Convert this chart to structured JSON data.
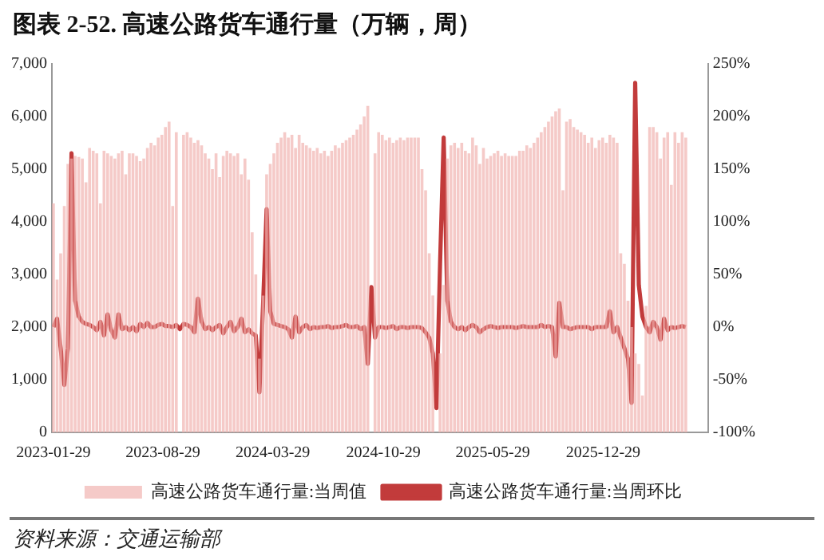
{
  "chart_data": {
    "type": "bar",
    "title": "图表 2-52. 高速公路货车通行量（万辆，周）",
    "annotations": [
      "资料来源：交通运输部"
    ],
    "legend": "bottom",
    "xlim": [
      "2023-01-26",
      "2026-07-20"
    ],
    "xticks": [
      "2023-01-29",
      "2023-08-29",
      "2024-03-29",
      "2024-10-29",
      "2025-05-29",
      "2025-12-29"
    ],
    "ylim": [
      0,
      7000
    ],
    "yticks": [
      {
        "value": 0,
        "label": "0"
      },
      {
        "value": 1000,
        "label": "1,000"
      },
      {
        "value": 2000,
        "label": "2,000"
      },
      {
        "value": 3000,
        "label": "3,000"
      },
      {
        "value": 4000,
        "label": "4,000"
      },
      {
        "value": 5000,
        "label": "5,000"
      },
      {
        "value": 6000,
        "label": "6,000"
      },
      {
        "value": 7000,
        "label": "7,000"
      }
    ],
    "y2lim": [
      -100,
      250
    ],
    "y2ticks": [
      {
        "value": -100,
        "label": "-100%"
      },
      {
        "value": -50,
        "label": "-50%"
      },
      {
        "value": 0,
        "label": "0%"
      },
      {
        "value": 50,
        "label": "50%"
      },
      {
        "value": 100,
        "label": "100%"
      },
      {
        "value": 150,
        "label": "150%"
      },
      {
        "value": 200,
        "label": "200%"
      },
      {
        "value": 250,
        "label": "250%"
      }
    ],
    "x": [
      "2023-01-29",
      "2023-02-05",
      "2023-02-12",
      "2023-02-19",
      "2023-02-26",
      "2023-03-05",
      "2023-03-12",
      "2023-03-19",
      "2023-03-26",
      "2023-04-02",
      "2023-04-09",
      "2023-04-16",
      "2023-04-23",
      "2023-04-30",
      "2023-05-07",
      "2023-05-14",
      "2023-05-21",
      "2023-05-28",
      "2023-06-04",
      "2023-06-11",
      "2023-06-18",
      "2023-06-25",
      "2023-07-02",
      "2023-07-09",
      "2023-07-16",
      "2023-07-23",
      "2023-07-30",
      "2023-08-06",
      "2023-08-13",
      "2023-08-20",
      "2023-08-27",
      "2023-09-03",
      "2023-09-10",
      "2023-09-17",
      "2023-09-24",
      "2023-10-01",
      "2023-10-08",
      "2023-10-15",
      "2023-10-22",
      "2023-10-29",
      "2023-11-05",
      "2023-11-12",
      "2023-11-19",
      "2023-11-26",
      "2023-12-03",
      "2023-12-10",
      "2023-12-17",
      "2023-12-24",
      "2023-12-31",
      "2024-01-07",
      "2024-01-14",
      "2024-01-21",
      "2024-01-28",
      "2024-02-04",
      "2024-02-11",
      "2024-02-18",
      "2024-02-25",
      "2024-03-03",
      "2024-03-10",
      "2024-03-17",
      "2024-03-24",
      "2024-03-31",
      "2024-04-07",
      "2024-04-14",
      "2024-04-21",
      "2024-04-28",
      "2024-05-05",
      "2024-05-12",
      "2024-05-19",
      "2024-05-26",
      "2024-06-02",
      "2024-06-09",
      "2024-06-16",
      "2024-06-23",
      "2024-06-30",
      "2024-07-07",
      "2024-07-14",
      "2024-07-21",
      "2024-07-28",
      "2024-08-04",
      "2024-08-11",
      "2024-08-18",
      "2024-08-25",
      "2024-09-01",
      "2024-09-08",
      "2024-09-15",
      "2024-09-22",
      "2024-09-29",
      "2024-10-06",
      "2024-10-13",
      "2024-10-20",
      "2024-10-27",
      "2024-11-03",
      "2024-11-10",
      "2024-11-17",
      "2024-11-24",
      "2024-12-01",
      "2024-12-08",
      "2024-12-15",
      "2024-12-22",
      "2024-12-29",
      "2025-01-05",
      "2025-01-12",
      "2025-01-19",
      "2025-01-26",
      "2025-02-02",
      "2025-02-09",
      "2025-02-16",
      "2025-02-23",
      "2025-03-02",
      "2025-03-09",
      "2025-03-16",
      "2025-03-23",
      "2025-03-30",
      "2025-04-06",
      "2025-04-13",
      "2025-04-20",
      "2025-04-27",
      "2025-05-04",
      "2025-05-11",
      "2025-05-18",
      "2025-05-25",
      "2025-06-01",
      "2025-06-08",
      "2025-06-15",
      "2025-06-22",
      "2025-06-29",
      "2025-07-06",
      "2025-07-13",
      "2025-07-20",
      "2025-07-27",
      "2025-08-03",
      "2025-08-10",
      "2025-08-17",
      "2025-08-24",
      "2025-08-31",
      "2025-09-07",
      "2025-09-14",
      "2025-09-21",
      "2025-09-28",
      "2025-10-05",
      "2025-10-12",
      "2025-10-19",
      "2025-10-26",
      "2025-11-02",
      "2025-11-09",
      "2025-11-16",
      "2025-11-23",
      "2025-11-30",
      "2025-12-07",
      "2025-12-14",
      "2025-12-21",
      "2025-12-28",
      "2026-01-04",
      "2026-01-11",
      "2026-01-18",
      "2026-01-25",
      "2026-02-01",
      "2026-02-08",
      "2026-02-15",
      "2026-02-22",
      "2026-03-01",
      "2026-03-08",
      "2026-03-15",
      "2026-03-22",
      "2026-03-29",
      "2026-04-05",
      "2026-04-12",
      "2026-04-19",
      "2026-04-26",
      "2026-05-03",
      "2026-05-10",
      "2026-05-17",
      "2026-05-24",
      "2026-05-31",
      "2026-06-07"
    ],
    "series": [
      {
        "name": "高速公路货车通行量:当周值",
        "color": "#f0b2b0",
        "values": [
          4350,
          2900,
          3400,
          4300,
          5100,
          5200,
          5250,
          5230,
          5200,
          4750,
          5400,
          5350,
          5300,
          4350,
          5350,
          5300,
          5250,
          5200,
          5300,
          5350,
          4900,
          5300,
          5300,
          5250,
          5150,
          5200,
          5400,
          5500,
          5450,
          5600,
          5650,
          5800,
          5900,
          4300,
          5700,
          null,
          5650,
          5700,
          5600,
          5500,
          5550,
          5450,
          5300,
          5200,
          5000,
          5300,
          4850,
          5250,
          5350,
          5300,
          5250,
          5300,
          4900,
          5200,
          4800,
          3800,
          3000,
          1400,
          2600,
          4900,
          5100,
          5300,
          5500,
          5600,
          5700,
          5600,
          5650,
          5400,
          5650,
          5500,
          5450,
          5400,
          5350,
          5400,
          5300,
          5350,
          5250,
          5350,
          5450,
          5400,
          5500,
          5550,
          5600,
          5650,
          5750,
          5850,
          6000,
          6200,
          null,
          5300,
          5700,
          5650,
          5550,
          5600,
          5500,
          5550,
          5600,
          5550,
          5600,
          5600,
          5600,
          5600,
          5000,
          4600,
          3400,
          2600,
          null,
          1500,
          2800,
          5200,
          5450,
          5500,
          5400,
          5500,
          5350,
          5300,
          5600,
          5450,
          5100,
          5400,
          5200,
          5250,
          5300,
          5350,
          5250,
          5300,
          5250,
          5250,
          5250,
          5350,
          5350,
          5450,
          5400,
          5500,
          5600,
          5700,
          5800,
          5900,
          6000,
          6100,
          6150,
          4600,
          5900,
          5950,
          5800,
          5750,
          5700,
          5650,
          5500,
          5600,
          5400,
          5550,
          5600,
          5500,
          5650,
          5600,
          5500,
          3400,
          3200,
          2500,
          2000,
          1500,
          1300,
          700,
          2400,
          5800,
          5800,
          5700,
          5200,
          5600,
          5700,
          4700,
          5700,
          5500,
          5700,
          5600
        ]
      },
      {
        "name": "高速公路货车通行量:当周环比",
        "type": "line",
        "axis": "y2",
        "color": "#c23b3b",
        "values": [
          0,
          8,
          -20,
          -55,
          -20,
          165,
          25,
          10,
          5,
          3,
          2,
          0,
          -3,
          5,
          -8,
          12,
          -3,
          -10,
          12,
          -2,
          0,
          -3,
          0,
          -4,
          3,
          0,
          4,
          0,
          0,
          2,
          3,
          1,
          1,
          0,
          2,
          -2,
          3,
          2,
          0,
          -5,
          27,
          5,
          -2,
          0,
          -3,
          0,
          2,
          -6,
          0,
          5,
          -4,
          0,
          8,
          -5,
          -2,
          -6,
          -8,
          -62,
          20,
          112,
          15,
          3,
          2,
          1,
          0,
          -2,
          -10,
          10,
          -5,
          0,
          2,
          -2,
          0,
          -1,
          0,
          0,
          1,
          -1,
          0,
          0,
          1,
          2,
          0,
          0,
          1,
          -2,
          0,
          -35,
          38,
          -10,
          0,
          0,
          -1,
          0,
          1,
          -2,
          0,
          0,
          -1,
          0,
          0,
          0,
          -1,
          -5,
          -10,
          -25,
          -77,
          60,
          180,
          25,
          5,
          0,
          -2,
          0,
          -3,
          0,
          2,
          0,
          -5,
          -2,
          0,
          1,
          0,
          -1,
          0,
          0,
          0,
          0,
          -1,
          0,
          1,
          0,
          0,
          0,
          0,
          2,
          0,
          1,
          0,
          -28,
          23,
          0,
          0,
          -2,
          -1,
          0,
          0,
          0,
          0,
          -2,
          0,
          0,
          0,
          0,
          15,
          -5,
          0,
          -10,
          -20,
          -30,
          -72,
          232,
          40,
          10,
          0,
          -5,
          5,
          0,
          -12,
          8,
          -3,
          0,
          -1,
          0,
          1,
          0
        ]
      }
    ]
  }
}
